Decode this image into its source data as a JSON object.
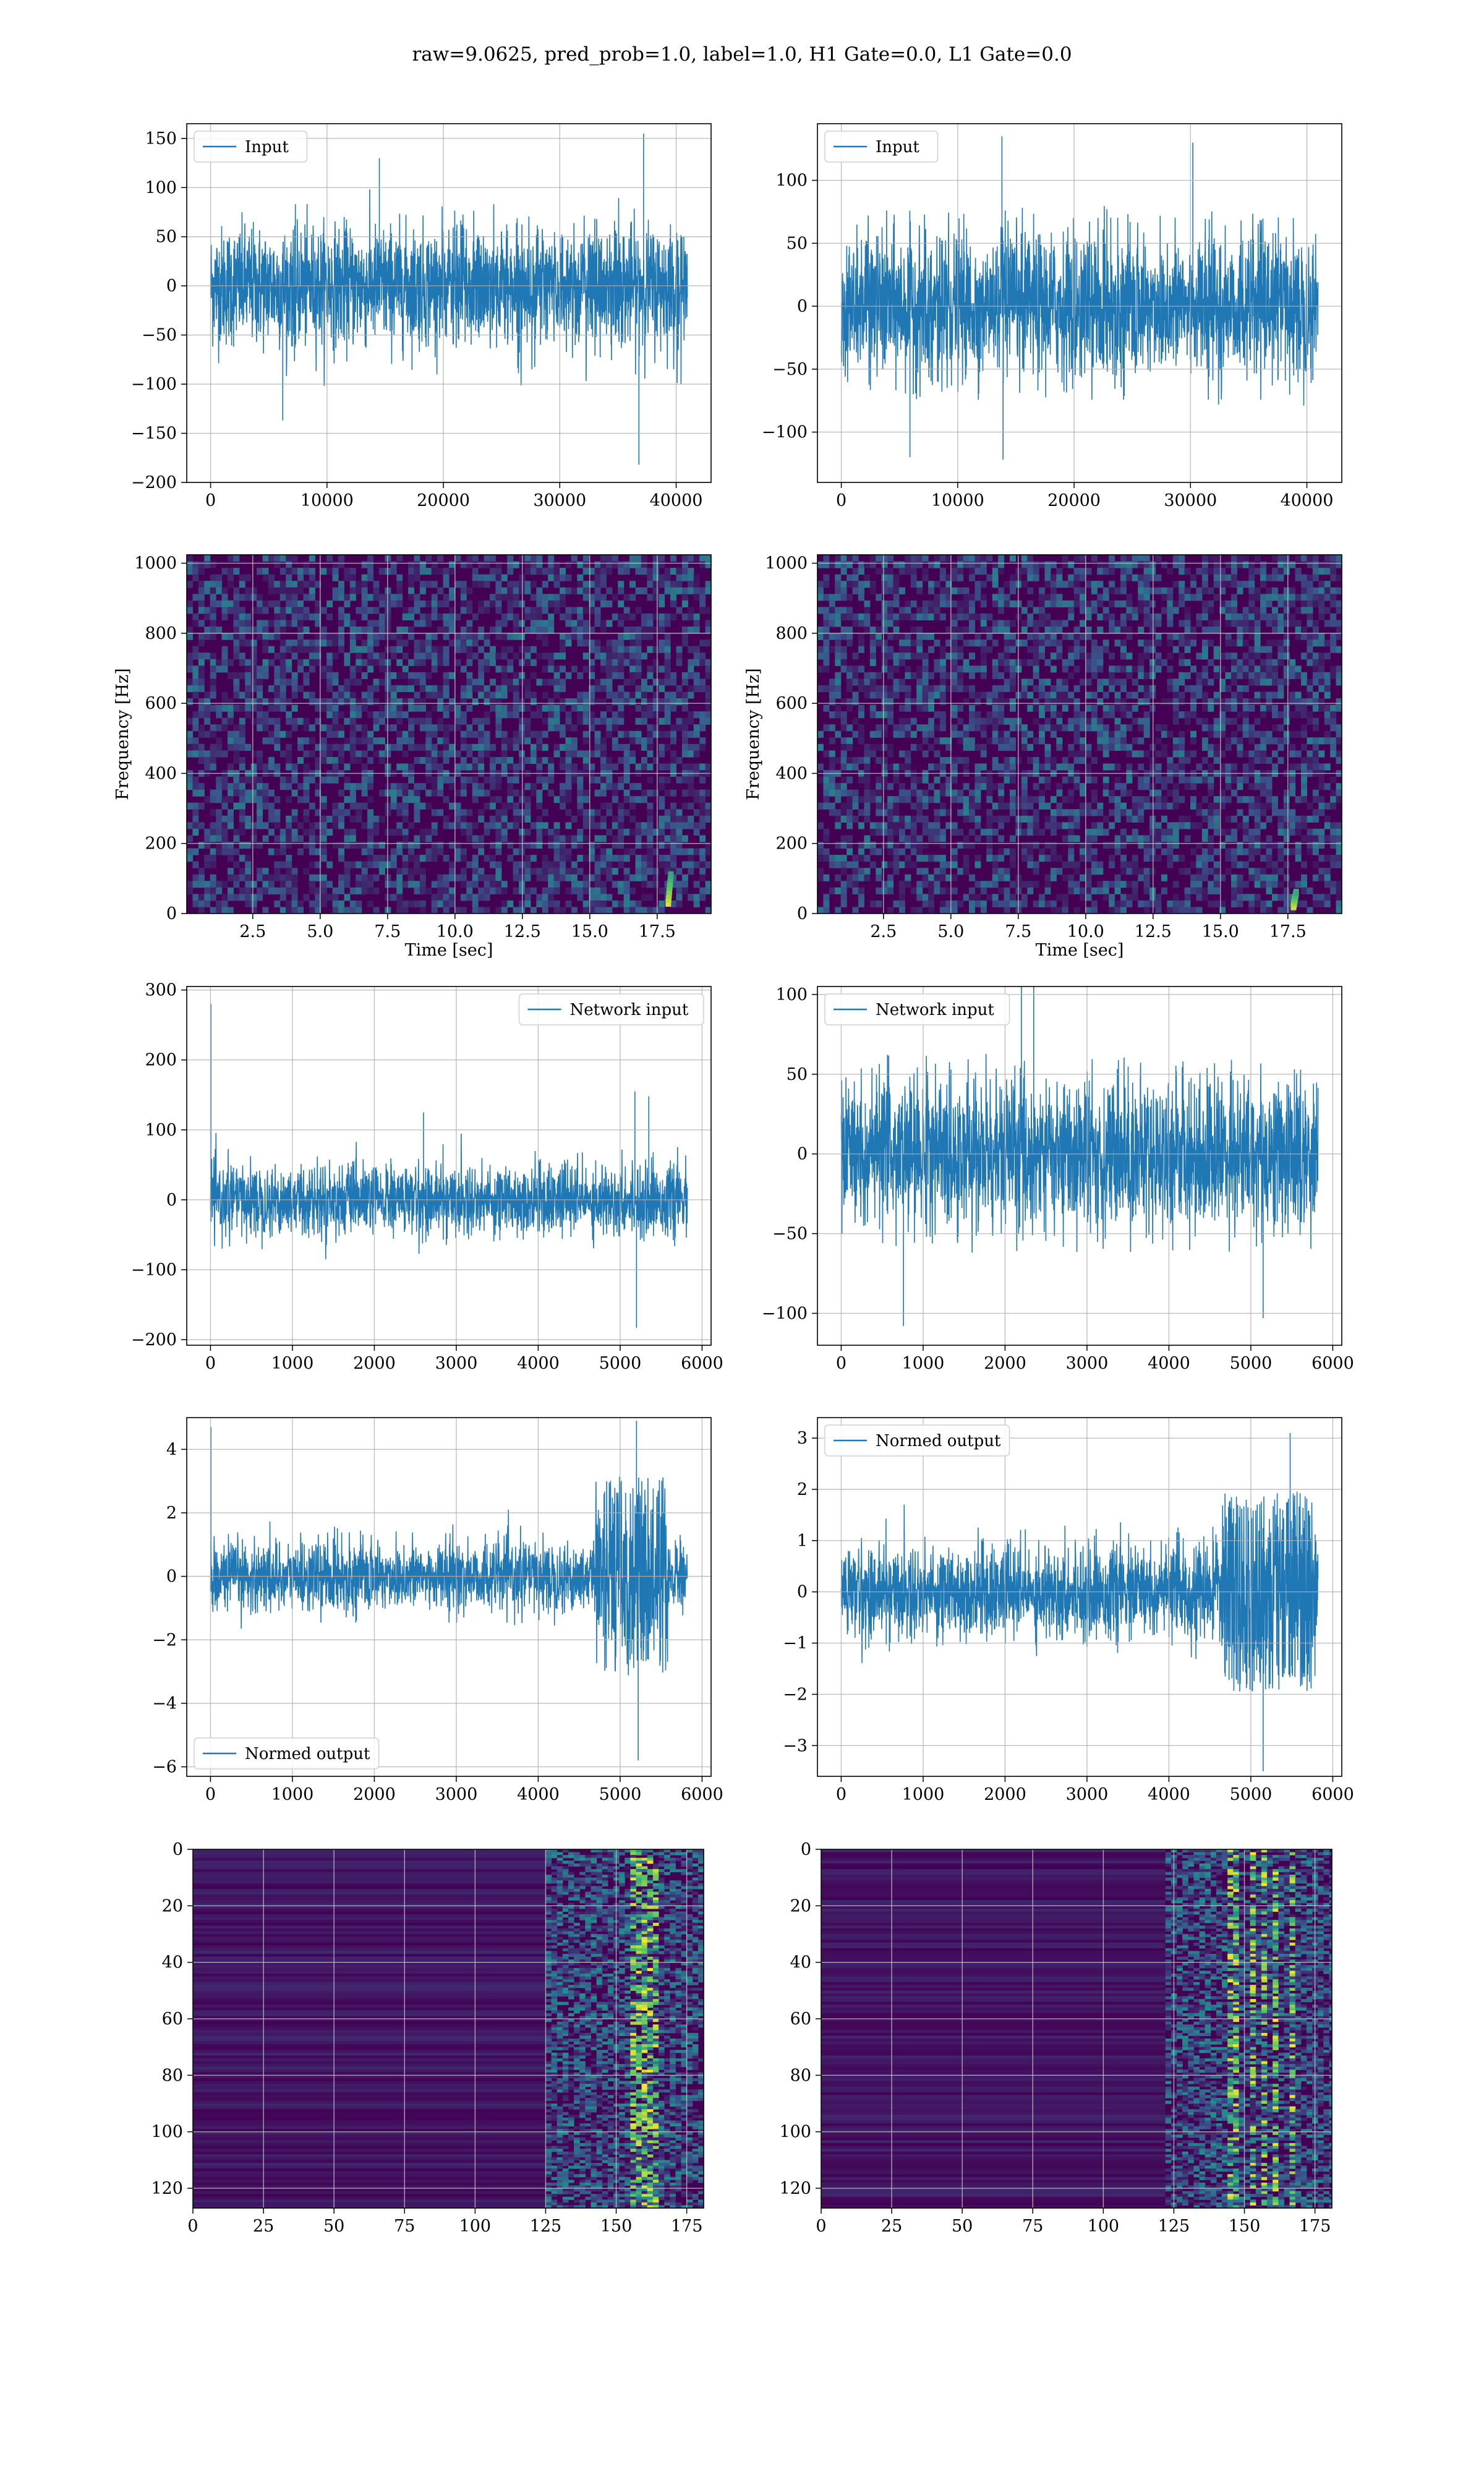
{
  "figure": {
    "suptitle": "raw=9.0625, pred_prob=1.0, label=1.0, H1 Gate=0.0, L1 Gate=0.0"
  },
  "colors": {
    "series": "#1f77b4",
    "grid": "#b0b0b0",
    "heat_bg": "#440154"
  },
  "chart_data": [
    {
      "id": "input-h1",
      "type": "line",
      "xlim": [
        -2050,
        43000
      ],
      "ylim": [
        -200,
        165
      ],
      "xticks": [
        0,
        10000,
        20000,
        30000,
        40000
      ],
      "xtick_labels": [
        "0",
        "10000",
        "20000",
        "30000",
        "40000"
      ],
      "yticks": [
        -200,
        -150,
        -100,
        -50,
        0,
        50,
        100,
        150
      ],
      "ytick_labels": [
        "−200",
        "−150",
        "−100",
        "−50",
        "0",
        "50",
        "100",
        "150"
      ],
      "legend": "Input",
      "legend_loc": "upper left",
      "grid": true,
      "x_range": [
        0,
        40960
      ],
      "points": 2200,
      "noise_std": 30,
      "spikes": [
        {
          "x": 36800,
          "y": -182
        },
        {
          "x": 37200,
          "y": 155
        },
        {
          "x": 6200,
          "y": -137
        },
        {
          "x": 14500,
          "y": 130
        }
      ]
    },
    {
      "id": "input-l1",
      "type": "line",
      "xlim": [
        -2050,
        43000
      ],
      "ylim": [
        -140,
        145
      ],
      "xticks": [
        0,
        10000,
        20000,
        30000,
        40000
      ],
      "xtick_labels": [
        "0",
        "10000",
        "20000",
        "30000",
        "40000"
      ],
      "yticks": [
        -100,
        -50,
        0,
        50,
        100
      ],
      "ytick_labels": [
        "−100",
        "−50",
        "0",
        "50",
        "100"
      ],
      "legend": "Input",
      "legend_loc": "upper left",
      "grid": true,
      "x_range": [
        0,
        40960
      ],
      "points": 2200,
      "noise_std": 28,
      "spikes": [
        {
          "x": 13800,
          "y": 135
        },
        {
          "x": 13900,
          "y": -122
        },
        {
          "x": 30200,
          "y": 130
        },
        {
          "x": 5900,
          "y": -120
        }
      ]
    },
    {
      "id": "spec-h1",
      "type": "heatmap",
      "xlim": [
        0.05,
        19.5
      ],
      "ylim": [
        0,
        1024
      ],
      "xticks": [
        2.5,
        5.0,
        7.5,
        10.0,
        12.5,
        15.0,
        17.5
      ],
      "xtick_labels": [
        "2.5",
        "5.0",
        "7.5",
        "10.0",
        "12.5",
        "15.0",
        "17.5"
      ],
      "yticks": [
        0,
        200,
        400,
        600,
        800,
        1000
      ],
      "ytick_labels": [
        "0",
        "200",
        "400",
        "600",
        "800",
        "1000"
      ],
      "xlabel": "Time [sec]",
      "ylabel": "Frequency [Hz]",
      "grid": true,
      "chirp": {
        "t": 17.9,
        "f_low": 30,
        "f_high": 110
      }
    },
    {
      "id": "spec-l1",
      "type": "heatmap",
      "xlim": [
        0.05,
        19.5
      ],
      "ylim": [
        0,
        1024
      ],
      "xticks": [
        2.5,
        5.0,
        7.5,
        10.0,
        12.5,
        15.0,
        17.5
      ],
      "xtick_labels": [
        "2.5",
        "5.0",
        "7.5",
        "10.0",
        "12.5",
        "15.0",
        "17.5"
      ],
      "yticks": [
        0,
        200,
        400,
        600,
        800,
        1000
      ],
      "ytick_labels": [
        "0",
        "200",
        "400",
        "600",
        "800",
        "1000"
      ],
      "xlabel": "Time [sec]",
      "ylabel": "Frequency [Hz]",
      "grid": true,
      "chirp": {
        "t": 17.7,
        "f_low": 20,
        "f_high": 60
      }
    },
    {
      "id": "netin-h1",
      "type": "line",
      "xlim": [
        -290,
        6110
      ],
      "ylim": [
        -208,
        305
      ],
      "xticks": [
        0,
        1000,
        2000,
        3000,
        4000,
        5000,
        6000
      ],
      "xtick_labels": [
        "0",
        "1000",
        "2000",
        "3000",
        "4000",
        "5000",
        "6000"
      ],
      "yticks": [
        -200,
        -100,
        0,
        100,
        200,
        300
      ],
      "ytick_labels": [
        "−200",
        "−100",
        "0",
        "100",
        "200",
        "300"
      ],
      "legend": "Network input",
      "legend_loc": "upper right",
      "grid": true,
      "x_range": [
        0,
        5820
      ],
      "points": 2000,
      "noise_std": 25,
      "spikes": [
        {
          "x": 5,
          "y": 280
        },
        {
          "x": 5200,
          "y": -183
        },
        {
          "x": 5180,
          "y": 155
        },
        {
          "x": 5350,
          "y": 148
        },
        {
          "x": 2600,
          "y": 125
        }
      ]
    },
    {
      "id": "netin-l1",
      "type": "line",
      "xlim": [
        -290,
        6110
      ],
      "ylim": [
        -120,
        105
      ],
      "xticks": [
        0,
        1000,
        2000,
        3000,
        4000,
        5000,
        6000
      ],
      "xtick_labels": [
        "0",
        "1000",
        "2000",
        "3000",
        "4000",
        "5000",
        "6000"
      ],
      "yticks": [
        -100,
        -50,
        0,
        50,
        100
      ],
      "ytick_labels": [
        "−100",
        "−50",
        "0",
        "50",
        "100"
      ],
      "legend": "Network input",
      "legend_loc": "upper left",
      "grid": true,
      "x_range": [
        0,
        5820
      ],
      "points": 2000,
      "noise_std": 24,
      "spikes": [
        {
          "x": 2200,
          "y": 108
        },
        {
          "x": 2350,
          "y": 106
        },
        {
          "x": 760,
          "y": -108
        },
        {
          "x": 5150,
          "y": -103
        }
      ]
    },
    {
      "id": "normout-h1",
      "type": "line",
      "xlim": [
        -290,
        6110
      ],
      "ylim": [
        -6.3,
        5.0
      ],
      "xticks": [
        0,
        1000,
        2000,
        3000,
        4000,
        5000,
        6000
      ],
      "xtick_labels": [
        "0",
        "1000",
        "2000",
        "3000",
        "4000",
        "5000",
        "6000"
      ],
      "yticks": [
        -6,
        -4,
        -2,
        0,
        2,
        4
      ],
      "ytick_labels": [
        "−6",
        "−4",
        "−2",
        "0",
        "2",
        "4"
      ],
      "legend": "Normed output",
      "legend_loc": "lower left",
      "grid": true,
      "x_range": [
        0,
        5820
      ],
      "points": 2000,
      "noise_std": 0.55,
      "burst": {
        "start": 4700,
        "end": 5600,
        "gain": 3.2
      },
      "spikes": [
        {
          "x": 5,
          "y": 4.7
        },
        {
          "x": 5220,
          "y": -5.8
        },
        {
          "x": 5200,
          "y": 4.9
        }
      ]
    },
    {
      "id": "normout-l1",
      "type": "line",
      "xlim": [
        -290,
        6110
      ],
      "ylim": [
        -3.6,
        3.4
      ],
      "xticks": [
        0,
        1000,
        2000,
        3000,
        4000,
        5000,
        6000
      ],
      "xtick_labels": [
        "0",
        "1000",
        "2000",
        "3000",
        "4000",
        "5000",
        "6000"
      ],
      "yticks": [
        -3,
        -2,
        -1,
        0,
        1,
        2,
        3
      ],
      "ytick_labels": [
        "−3",
        "−2",
        "−1",
        "0",
        "1",
        "2",
        "3"
      ],
      "legend": "Normed output",
      "legend_loc": "upper left",
      "grid": true,
      "x_range": [
        0,
        5820
      ],
      "points": 2000,
      "noise_std": 0.45,
      "burst": {
        "start": 4650,
        "end": 5800,
        "gain": 3.0
      },
      "spikes": [
        {
          "x": 5150,
          "y": -3.5
        },
        {
          "x": 5480,
          "y": 3.1
        }
      ]
    },
    {
      "id": "feat-h1",
      "type": "heatmap",
      "xlim": [
        0,
        181
      ],
      "ylim": [
        127,
        0
      ],
      "xticks": [
        0,
        25,
        50,
        75,
        100,
        125,
        150,
        175
      ],
      "xtick_labels": [
        "0",
        "25",
        "50",
        "75",
        "100",
        "125",
        "150",
        "175"
      ],
      "yticks": [
        0,
        20,
        40,
        60,
        80,
        100,
        120
      ],
      "ytick_labels": [
        "0",
        "20",
        "40",
        "60",
        "80",
        "100",
        "120"
      ],
      "grid": true,
      "active_from": 125,
      "hot_cols": [
        156,
        158,
        161,
        163
      ]
    },
    {
      "id": "feat-l1",
      "type": "heatmap",
      "xlim": [
        0,
        181
      ],
      "ylim": [
        127,
        0
      ],
      "xticks": [
        0,
        25,
        50,
        75,
        100,
        125,
        150,
        175
      ],
      "xtick_labels": [
        "0",
        "25",
        "50",
        "75",
        "100",
        "125",
        "150",
        "175"
      ],
      "yticks": [
        0,
        20,
        40,
        60,
        80,
        100,
        120
      ],
      "ytick_labels": [
        "0",
        "20",
        "40",
        "60",
        "80",
        "100",
        "120"
      ],
      "grid": true,
      "active_from": 122,
      "hot_cols": [
        145,
        152,
        156,
        160,
        166
      ]
    }
  ]
}
